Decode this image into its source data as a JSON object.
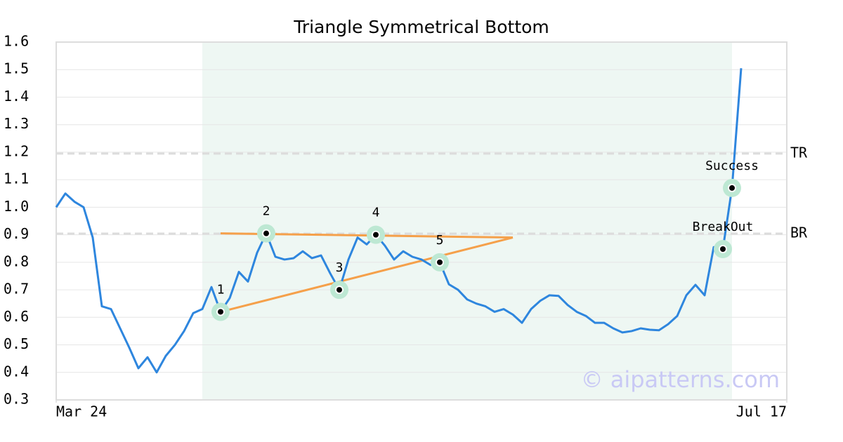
{
  "chart_data": {
    "type": "line",
    "title": "Triangle Symmetrical Bottom",
    "x": [
      0,
      1,
      2,
      3,
      4,
      5,
      6,
      7,
      8,
      9,
      10,
      11,
      12,
      13,
      14,
      15,
      16,
      17,
      18,
      19,
      20,
      21,
      22,
      23,
      24,
      25,
      26,
      27,
      28,
      29,
      30,
      31,
      32,
      33,
      34,
      35,
      36,
      37,
      38,
      39,
      40,
      41,
      42,
      43,
      44,
      45,
      46,
      47,
      48,
      49,
      50,
      51,
      52,
      53,
      54,
      55,
      56,
      57,
      58,
      59,
      60,
      61,
      62,
      63,
      64,
      65,
      66,
      67,
      68,
      69,
      70,
      71,
      72,
      73,
      74,
      75
    ],
    "values": [
      1.0,
      1.05,
      1.02,
      1.0,
      0.89,
      0.64,
      0.63,
      0.56,
      0.49,
      0.415,
      0.455,
      0.4,
      0.46,
      0.5,
      0.55,
      0.615,
      0.63,
      0.71,
      0.62,
      0.67,
      0.765,
      0.73,
      0.835,
      0.905,
      0.82,
      0.81,
      0.815,
      0.84,
      0.815,
      0.825,
      0.76,
      0.7,
      0.81,
      0.89,
      0.865,
      0.9,
      0.86,
      0.81,
      0.84,
      0.82,
      0.81,
      0.79,
      0.8,
      0.72,
      0.7,
      0.665,
      0.65,
      0.64,
      0.62,
      0.63,
      0.61,
      0.58,
      0.63,
      0.66,
      0.68,
      0.678,
      0.645,
      0.62,
      0.605,
      0.58,
      0.58,
      0.56,
      0.545,
      0.55,
      0.56,
      0.555,
      0.553,
      0.575,
      0.605,
      0.68,
      0.718,
      0.68,
      0.855,
      0.848,
      1.07,
      1.505
    ],
    "color": "#2e86de",
    "xlim": [
      0,
      80
    ],
    "xticks": [
      {
        "value": 0,
        "label": "Mar 24"
      },
      {
        "value": 80,
        "label": "Jul 17"
      }
    ],
    "ylim": [
      0.3,
      1.6
    ],
    "yticks": [
      0.3,
      0.4,
      0.5,
      0.6,
      0.7,
      0.8,
      0.9,
      {
        "value": 1.0,
        "label": "1.0"
      },
      1.1,
      1.2,
      1.3,
      1.4,
      1.5,
      1.6
    ],
    "grid": true,
    "shaded_range": [
      16,
      74
    ],
    "shade_color": "#eef7f3",
    "trend_color": "#f5a04a",
    "trend_lines": [
      {
        "x": [
          18,
          50
        ],
        "y": [
          0.905,
          0.89
        ]
      },
      {
        "x": [
          18,
          50
        ],
        "y": [
          0.62,
          0.89
        ]
      }
    ],
    "levels": [
      {
        "label": "TR",
        "value": 1.195
      },
      {
        "label": "BR",
        "value": 0.904
      }
    ],
    "points": [
      {
        "label": "1",
        "x": 18,
        "y": 0.62
      },
      {
        "label": "2",
        "x": 23,
        "y": 0.905
      },
      {
        "label": "3",
        "x": 31,
        "y": 0.7
      },
      {
        "label": "4",
        "x": 35,
        "y": 0.9
      },
      {
        "label": "5",
        "x": 42,
        "y": 0.8
      },
      {
        "label": "BreakOut",
        "x": 73,
        "y": 0.848
      },
      {
        "label": "Success",
        "x": 74,
        "y": 1.07
      }
    ],
    "watermark": "© aipatterns.com"
  }
}
